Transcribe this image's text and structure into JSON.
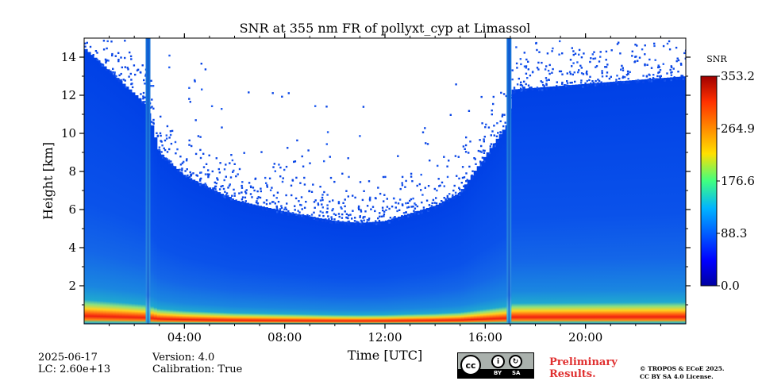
{
  "chart_data": {
    "type": "heatmap",
    "title": "SNR at 355 nm FR of pollyxt_cyp at Limassol",
    "xlabel": "Time [UTC]",
    "ylabel": "Height [km]",
    "xlim": [
      0,
      24
    ],
    "ylim": [
      0,
      15
    ],
    "x_ticks": [
      4,
      8,
      12,
      16,
      20
    ],
    "x_tick_labels": [
      "04:00",
      "08:00",
      "12:00",
      "16:00",
      "20:00"
    ],
    "y_ticks": [
      2,
      4,
      6,
      8,
      10,
      12,
      14
    ],
    "y_tick_labels": [
      "2",
      "4",
      "6",
      "8",
      "10",
      "12",
      "14"
    ],
    "colorbar": {
      "label": "SNR",
      "range": [
        0.0,
        353.2
      ],
      "ticks": [
        0.0,
        88.3,
        176.6,
        264.9,
        353.2
      ],
      "tick_labels": [
        "0.0",
        "88.3",
        "176.6",
        "264.9",
        "353.2"
      ],
      "colormap": "jet"
    },
    "gaps_utc": [
      2.55,
      16.95
    ],
    "signal_top_km_by_hour": [
      [
        0,
        14.5
      ],
      [
        2.5,
        11.5
      ],
      [
        3,
        9.0
      ],
      [
        4,
        7.8
      ],
      [
        6,
        6.5
      ],
      [
        8,
        5.9
      ],
      [
        10,
        5.4
      ],
      [
        11,
        5.3
      ],
      [
        12,
        5.4
      ],
      [
        14,
        6.2
      ],
      [
        15,
        6.9
      ],
      [
        16,
        8.8
      ],
      [
        16.9,
        10.5
      ],
      [
        17.1,
        12.3
      ],
      [
        20,
        12.6
      ],
      [
        24,
        13.0
      ]
    ]
  },
  "info": {
    "date": "2025-06-17",
    "lc": "LC: 2.60e+13",
    "version": "Version: 4.0",
    "calibration": "Calibration: True"
  },
  "license_badge": {
    "cc": "cc",
    "by": "BY",
    "sa": "SA"
  },
  "preliminary": {
    "line1": "Preliminary",
    "line2": "Results."
  },
  "copyright": {
    "line1": "© TROPOS & ECoE 2025.",
    "line2": "CC BY SA 4.0 License."
  }
}
